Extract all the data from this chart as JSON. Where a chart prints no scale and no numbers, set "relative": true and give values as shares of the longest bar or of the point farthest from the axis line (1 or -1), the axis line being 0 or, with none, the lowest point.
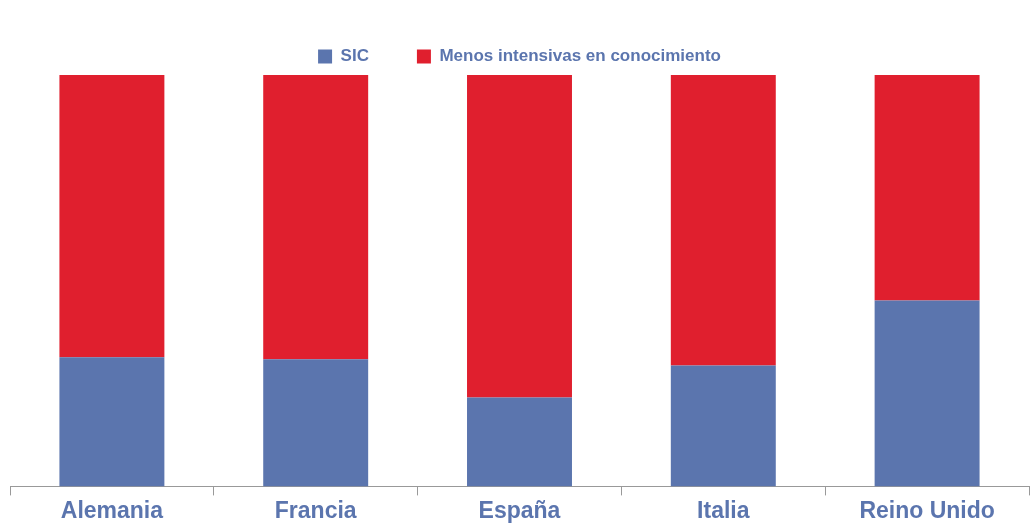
{
  "chart_data": {
    "type": "bar",
    "stacked": true,
    "relative": true,
    "legend": "top",
    "categories": [
      "Alemania",
      "Francia",
      "España",
      "Italia",
      "Reino Unido"
    ],
    "series": [
      {
        "name": "SIC",
        "color": "#5b75ae",
        "values": [
          0.314,
          0.309,
          0.216,
          0.294,
          0.452
        ]
      },
      {
        "name": "Menos intensivas en conocimiento",
        "color": "#e01f2e",
        "values": [
          0.686,
          0.691,
          0.784,
          0.706,
          0.548
        ]
      }
    ]
  }
}
